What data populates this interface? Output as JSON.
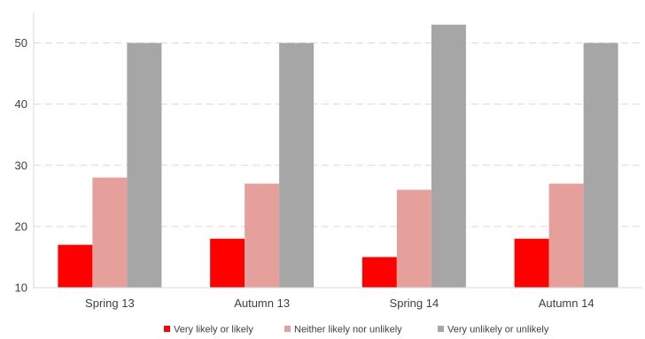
{
  "chart_data": {
    "type": "bar",
    "title": "",
    "xlabel": "",
    "ylabel": "",
    "categories": [
      "Spring 13",
      "Autumn 13",
      "Spring 14",
      "Autumn 14"
    ],
    "series": [
      {
        "name": "Very likely or likely",
        "color": "#ff0000",
        "values": [
          17,
          18,
          15,
          18
        ]
      },
      {
        "name": "Neither likely nor unlikely",
        "color": "#e6a09b",
        "values": [
          28,
          27,
          26,
          27
        ]
      },
      {
        "name": "Very unlikely or unlikely",
        "color": "#a6a6a6",
        "values": [
          50,
          50,
          53,
          50
        ]
      }
    ],
    "ylim": [
      10,
      55
    ],
    "yticks": [
      "10",
      "20",
      "30",
      "40",
      "50"
    ],
    "grid": "horizontal dashed",
    "legend_position": "bottom"
  }
}
